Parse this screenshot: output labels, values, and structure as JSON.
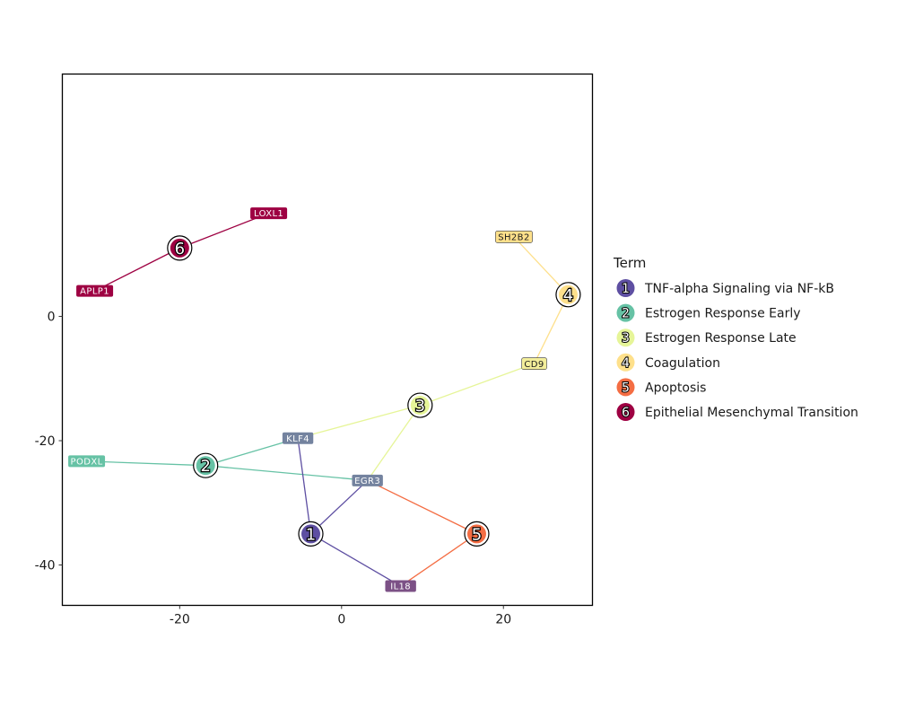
{
  "chart_data": {
    "type": "network",
    "title": "",
    "xlabel": "",
    "ylabel": "",
    "xlim": [
      -34.5,
      31
    ],
    "ylim": [
      -46.5,
      39
    ],
    "x_ticks": [
      -20,
      0,
      20
    ],
    "y_ticks": [
      0,
      -20,
      -40
    ],
    "grid": false,
    "legend_title": "Term",
    "legend_position": "right",
    "terms": [
      {
        "id": 1,
        "number": "1",
        "name": "TNF-alpha Signaling via NF-kB",
        "color": "#5e4fa2",
        "x": -3.8,
        "y": -35.0
      },
      {
        "id": 2,
        "number": "2",
        "name": "Estrogen Response Early",
        "color": "#66c2a5",
        "x": -16.8,
        "y": -24.0
      },
      {
        "id": 3,
        "number": "3",
        "name": "Estrogen Response Late",
        "color": "#e6f598",
        "x": 9.7,
        "y": -14.3
      },
      {
        "id": 4,
        "number": "4",
        "name": "Coagulation",
        "color": "#fee08b",
        "x": 28.0,
        "y": 3.5
      },
      {
        "id": 5,
        "number": "5",
        "name": "Apoptosis",
        "color": "#f46d43",
        "x": 16.7,
        "y": -35.0
      },
      {
        "id": 6,
        "number": "6",
        "name": "Epithelial Mesenchymal Transition",
        "color": "#9e0142",
        "x": -20.0,
        "y": 11.0
      }
    ],
    "genes": [
      {
        "name": "LOXL1",
        "x": -9.0,
        "y": 16.6,
        "color": "#9e0142",
        "text_color": "#ffffff"
      },
      {
        "name": "APLP1",
        "x": -30.5,
        "y": 4.1,
        "color": "#9e0142",
        "text_color": "#ffffff"
      },
      {
        "name": "SH2B2",
        "x": 21.3,
        "y": 12.8,
        "color": "#fee08b",
        "text_color": "#1a1a1a"
      },
      {
        "name": "CD9",
        "x": 23.8,
        "y": -7.6,
        "color": "#f3ee9a",
        "text_color": "#1a1a1a"
      },
      {
        "name": "KLF4",
        "x": -5.4,
        "y": -19.6,
        "color": "#74839f",
        "text_color": "#ffffff"
      },
      {
        "name": "PODXL",
        "x": -31.5,
        "y": -23.3,
        "color": "#66c2a5",
        "text_color": "#ffffff"
      },
      {
        "name": "EGR3",
        "x": 3.2,
        "y": -26.4,
        "color": "#74839f",
        "text_color": "#ffffff"
      },
      {
        "name": "IL18",
        "x": 7.3,
        "y": -43.4,
        "color": "#7c5186",
        "text_color": "#ffffff"
      }
    ],
    "edges": [
      {
        "term": 6,
        "gene": "LOXL1"
      },
      {
        "term": 6,
        "gene": "APLP1"
      },
      {
        "term": 4,
        "gene": "SH2B2"
      },
      {
        "term": 4,
        "gene": "CD9"
      },
      {
        "term": 3,
        "gene": "CD9"
      },
      {
        "term": 3,
        "gene": "KLF4"
      },
      {
        "term": 3,
        "gene": "EGR3"
      },
      {
        "term": 2,
        "gene": "KLF4"
      },
      {
        "term": 2,
        "gene": "PODXL"
      },
      {
        "term": 2,
        "gene": "EGR3"
      },
      {
        "term": 1,
        "gene": "KLF4"
      },
      {
        "term": 1,
        "gene": "EGR3"
      },
      {
        "term": 1,
        "gene": "IL18"
      },
      {
        "term": 5,
        "gene": "EGR3"
      },
      {
        "term": 5,
        "gene": "IL18"
      }
    ]
  }
}
